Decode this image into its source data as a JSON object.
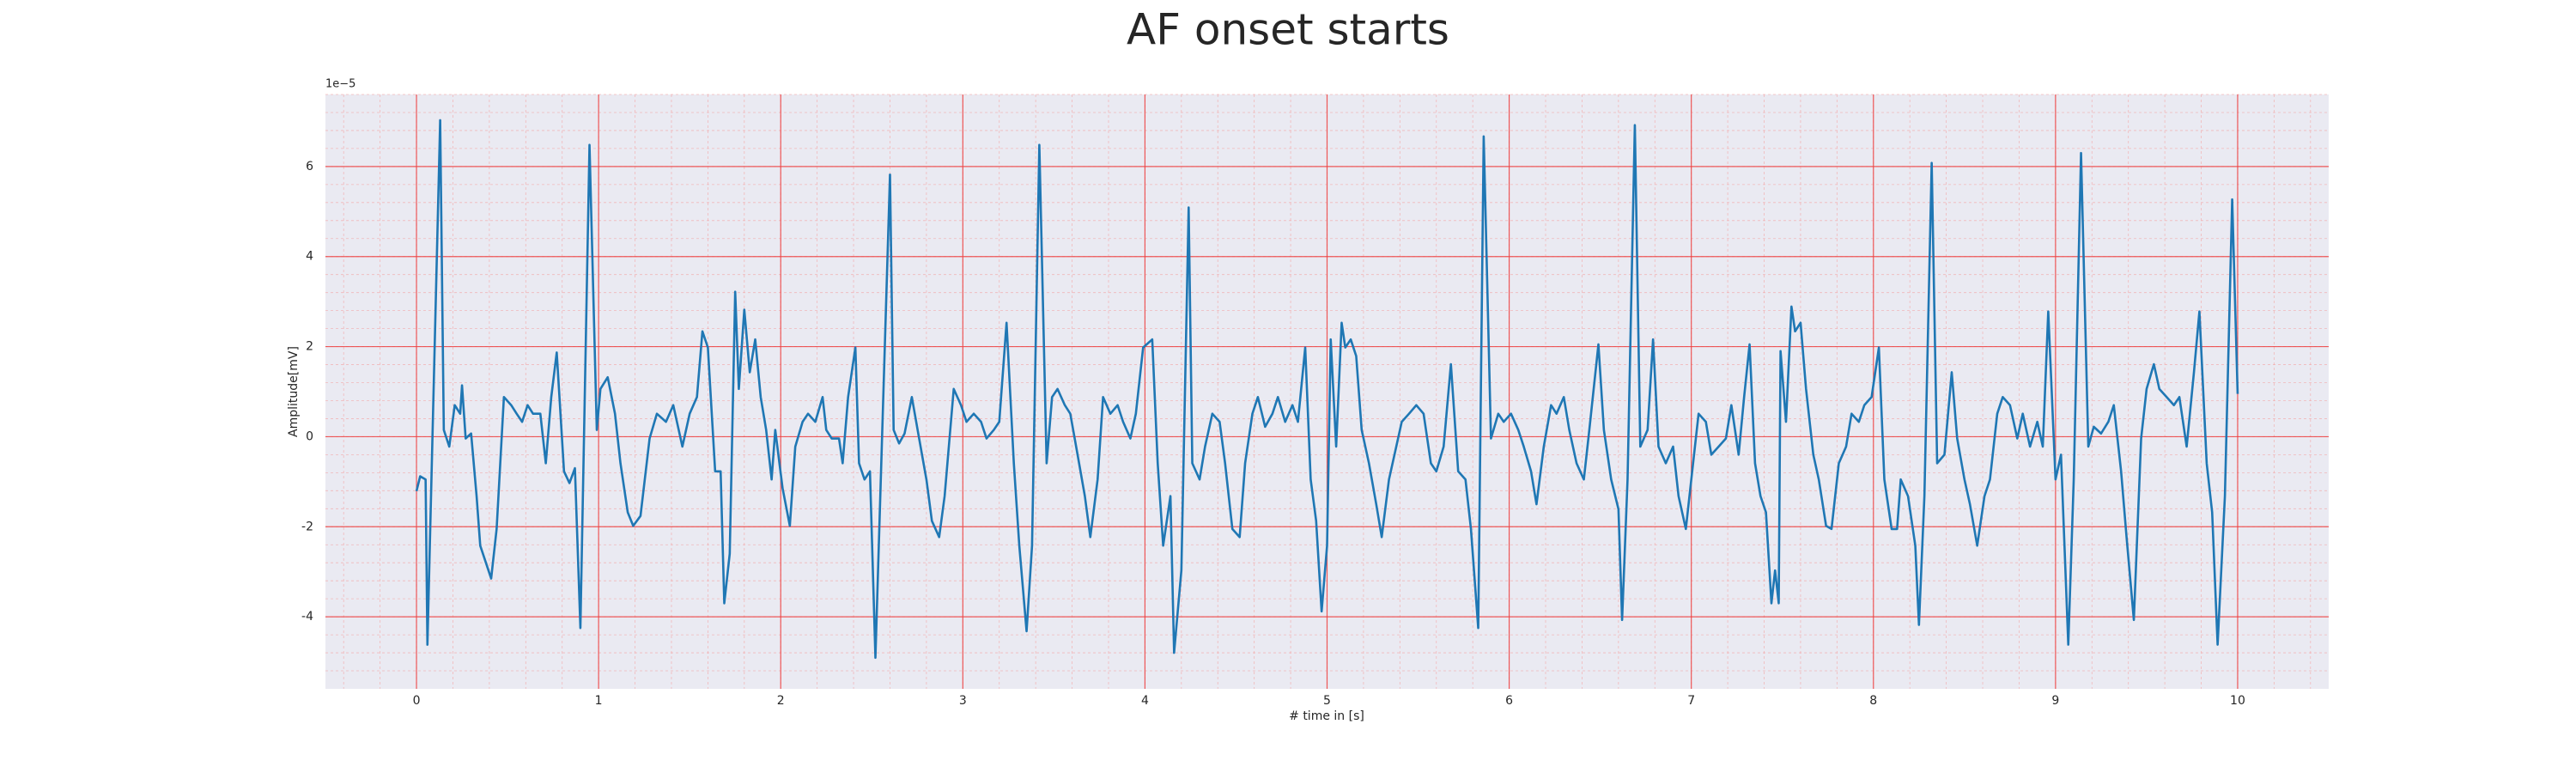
{
  "chart_data": {
    "type": "line",
    "title": "AF onset starts",
    "xlabel": "# time in [s]",
    "ylabel": "Amplitude[mV]",
    "y_offset_label": "1e−5",
    "color": "#1f77b4",
    "grid": true,
    "minor_grid": true,
    "xlim": [
      -0.5,
      10.5
    ],
    "ylim": [
      -5.6,
      7.6
    ],
    "xticks": [
      0,
      1,
      2,
      3,
      4,
      5,
      6,
      7,
      8,
      9,
      10
    ],
    "yticks": [
      -4,
      -2,
      0,
      2,
      4,
      6
    ],
    "x": [
      0,
      0.02,
      0.05,
      0.06,
      0.13,
      0.15,
      0.18,
      0.21,
      0.24,
      0.25,
      0.27,
      0.3,
      0.33,
      0.35,
      0.41,
      0.44,
      0.48,
      0.52,
      0.55,
      0.58,
      0.61,
      0.64,
      0.68,
      0.71,
      0.74,
      0.77,
      0.81,
      0.84,
      0.87,
      0.9,
      0.95,
      0.99,
      1.01,
      1.05,
      1.09,
      1.12,
      1.16,
      1.19,
      1.23,
      1.28,
      1.32,
      1.37,
      1.41,
      1.46,
      1.5,
      1.54,
      1.57,
      1.6,
      1.64,
      1.67,
      1.69,
      1.72,
      1.75,
      1.77,
      1.8,
      1.83,
      1.86,
      1.89,
      1.92,
      1.95,
      1.97,
      2.01,
      2.05,
      2.08,
      2.12,
      2.15,
      2.19,
      2.23,
      2.25,
      2.28,
      2.32,
      2.34,
      2.37,
      2.41,
      2.43,
      2.46,
      2.49,
      2.52,
      2.6,
      2.62,
      2.65,
      2.68,
      2.72,
      2.76,
      2.8,
      2.83,
      2.87,
      2.9,
      2.95,
      2.99,
      3.02,
      3.06,
      3.1,
      3.13,
      3.17,
      3.2,
      3.24,
      3.28,
      3.31,
      3.35,
      3.38,
      3.42,
      3.46,
      3.49,
      3.52,
      3.56,
      3.59,
      3.63,
      3.67,
      3.7,
      3.74,
      3.77,
      3.81,
      3.85,
      3.88,
      3.92,
      3.95,
      3.99,
      4.04,
      4.07,
      4.1,
      4.14,
      4.16,
      4.2,
      4.24,
      4.26,
      4.3,
      4.33,
      4.37,
      4.41,
      4.44,
      4.48,
      4.52,
      4.55,
      4.59,
      4.62,
      4.66,
      4.7,
      4.73,
      4.77,
      4.81,
      4.84,
      4.88,
      4.91,
      4.94,
      4.97,
      5.0,
      5.02,
      5.05,
      5.08,
      5.1,
      5.13,
      5.16,
      5.19,
      5.23,
      5.27,
      5.3,
      5.34,
      5.38,
      5.41,
      5.45,
      5.49,
      5.53,
      5.57,
      5.6,
      5.64,
      5.68,
      5.72,
      5.76,
      5.79,
      5.83,
      5.86,
      5.9,
      5.94,
      5.97,
      6.01,
      6.05,
      6.08,
      6.12,
      6.15,
      6.19,
      6.23,
      6.26,
      6.3,
      6.33,
      6.37,
      6.41,
      6.44,
      6.49,
      6.52,
      6.56,
      6.6,
      6.62,
      6.65,
      6.69,
      6.72,
      6.76,
      6.79,
      6.82,
      6.86,
      6.9,
      6.93,
      6.97,
      7.0,
      7.04,
      7.08,
      7.11,
      7.15,
      7.19,
      7.22,
      7.26,
      7.29,
      7.32,
      7.35,
      7.38,
      7.41,
      7.44,
      7.46,
      7.48,
      7.49,
      7.52,
      7.55,
      7.57,
      7.6,
      7.63,
      7.67,
      7.7,
      7.74,
      7.77,
      7.81,
      7.85,
      7.88,
      7.92,
      7.95,
      7.99,
      8.03,
      8.06,
      8.1,
      8.13,
      8.15,
      8.19,
      8.23,
      8.25,
      8.28,
      8.32,
      8.35,
      8.39,
      8.43,
      8.46,
      8.5,
      8.53,
      8.57,
      8.61,
      8.64,
      8.68,
      8.71,
      8.75,
      8.79,
      8.82,
      8.86,
      8.9,
      8.93,
      8.96,
      9.0,
      9.03,
      9.07,
      9.1,
      9.14,
      9.18,
      9.21,
      9.25,
      9.29,
      9.32,
      9.36,
      9.39,
      9.43,
      9.47,
      9.5,
      9.54,
      9.57,
      9.61,
      9.65,
      9.68,
      9.72,
      9.76,
      9.79,
      9.83,
      9.86,
      9.89,
      9.93,
      9.97,
      10.0
    ],
    "values": [
      -1.21,
      -0.88,
      -0.95,
      -4.62,
      7.03,
      0.15,
      -0.22,
      0.7,
      0.51,
      1.14,
      -0.04,
      0.07,
      -1.32,
      -2.42,
      -3.15,
      -2.05,
      0.88,
      0.7,
      0.51,
      0.33,
      0.7,
      0.51,
      0.51,
      -0.59,
      0.88,
      1.87,
      -0.77,
      -1.03,
      -0.7,
      -4.25,
      6.48,
      0.15,
      1.06,
      1.32,
      0.51,
      -0.59,
      -1.68,
      -1.98,
      -1.76,
      -0.04,
      0.51,
      0.33,
      0.7,
      -0.22,
      0.51,
      0.88,
      2.34,
      1.98,
      -0.77,
      -0.77,
      -3.7,
      -2.6,
      3.22,
      1.06,
      2.82,
      1.43,
      2.16,
      0.88,
      0.15,
      -0.95,
      0.15,
      -1.14,
      -1.98,
      -0.22,
      0.33,
      0.51,
      0.33,
      0.88,
      0.15,
      -0.04,
      -0.04,
      -0.59,
      0.88,
      1.98,
      -0.59,
      -0.95,
      -0.77,
      -4.91,
      5.82,
      0.15,
      -0.15,
      0.07,
      0.88,
      -0.04,
      -0.95,
      -1.87,
      -2.23,
      -1.32,
      1.06,
      0.7,
      0.33,
      0.51,
      0.33,
      -0.04,
      0.15,
      0.33,
      2.53,
      -0.59,
      -2.42,
      -4.32,
      -2.42,
      6.48,
      -0.59,
      0.88,
      1.06,
      0.7,
      0.51,
      -0.4,
      -1.32,
      -2.23,
      -0.95,
      0.88,
      0.51,
      0.7,
      0.33,
      -0.04,
      0.51,
      1.98,
      2.16,
      -0.59,
      -2.42,
      -1.32,
      -4.8,
      -2.97,
      5.09,
      -0.59,
      -0.95,
      -0.22,
      0.51,
      0.33,
      -0.59,
      -2.05,
      -2.23,
      -0.59,
      0.51,
      0.88,
      0.22,
      0.51,
      0.88,
      0.33,
      0.7,
      0.33,
      1.98,
      -0.95,
      -1.87,
      -3.88,
      -2.42,
      2.16,
      -0.22,
      2.53,
      1.98,
      2.16,
      1.79,
      0.15,
      -0.59,
      -1.5,
      -2.23,
      -0.95,
      -0.22,
      0.33,
      0.51,
      0.7,
      0.51,
      -0.59,
      -0.77,
      -0.22,
      1.61,
      -0.77,
      -0.95,
      -2.05,
      -4.25,
      6.67,
      -0.04,
      0.51,
      0.33,
      0.51,
      0.15,
      -0.22,
      -0.77,
      -1.5,
      -0.22,
      0.7,
      0.51,
      0.88,
      0.15,
      -0.59,
      -0.95,
      0.15,
      2.05,
      0.15,
      -0.95,
      -1.61,
      -4.07,
      -0.95,
      6.92,
      -0.22,
      0.15,
      2.16,
      -0.22,
      -0.59,
      -0.22,
      -1.32,
      -2.05,
      -0.95,
      0.51,
      0.33,
      -0.4,
      -0.22,
      -0.04,
      0.7,
      -0.4,
      0.88,
      2.05,
      -0.59,
      -1.32,
      -1.68,
      -3.7,
      -2.97,
      -3.7,
      1.9,
      0.33,
      2.89,
      2.34,
      2.53,
      1.06,
      -0.4,
      -0.95,
      -1.98,
      -2.05,
      -0.59,
      -0.22,
      0.51,
      0.33,
      0.7,
      0.88,
      1.98,
      -0.95,
      -2.05,
      -2.05,
      -0.95,
      -1.32,
      -2.42,
      -4.18,
      -1.32,
      6.08,
      -0.59,
      -0.4,
      1.43,
      -0.04,
      -0.95,
      -1.5,
      -2.42,
      -1.32,
      -0.95,
      0.51,
      0.88,
      0.7,
      -0.04,
      0.51,
      -0.22,
      0.33,
      -0.22,
      2.78,
      -0.95,
      -0.4,
      -4.62,
      -0.95,
      6.3,
      -0.22,
      0.22,
      0.07,
      0.33,
      0.7,
      -0.77,
      -2.23,
      -4.07,
      -0.04,
      1.06,
      1.61,
      1.06,
      0.88,
      0.7,
      0.88,
      -0.22,
      1.43,
      2.78,
      -0.59,
      -1.68,
      -4.62,
      -1.32,
      5.27,
      0.95
    ]
  }
}
